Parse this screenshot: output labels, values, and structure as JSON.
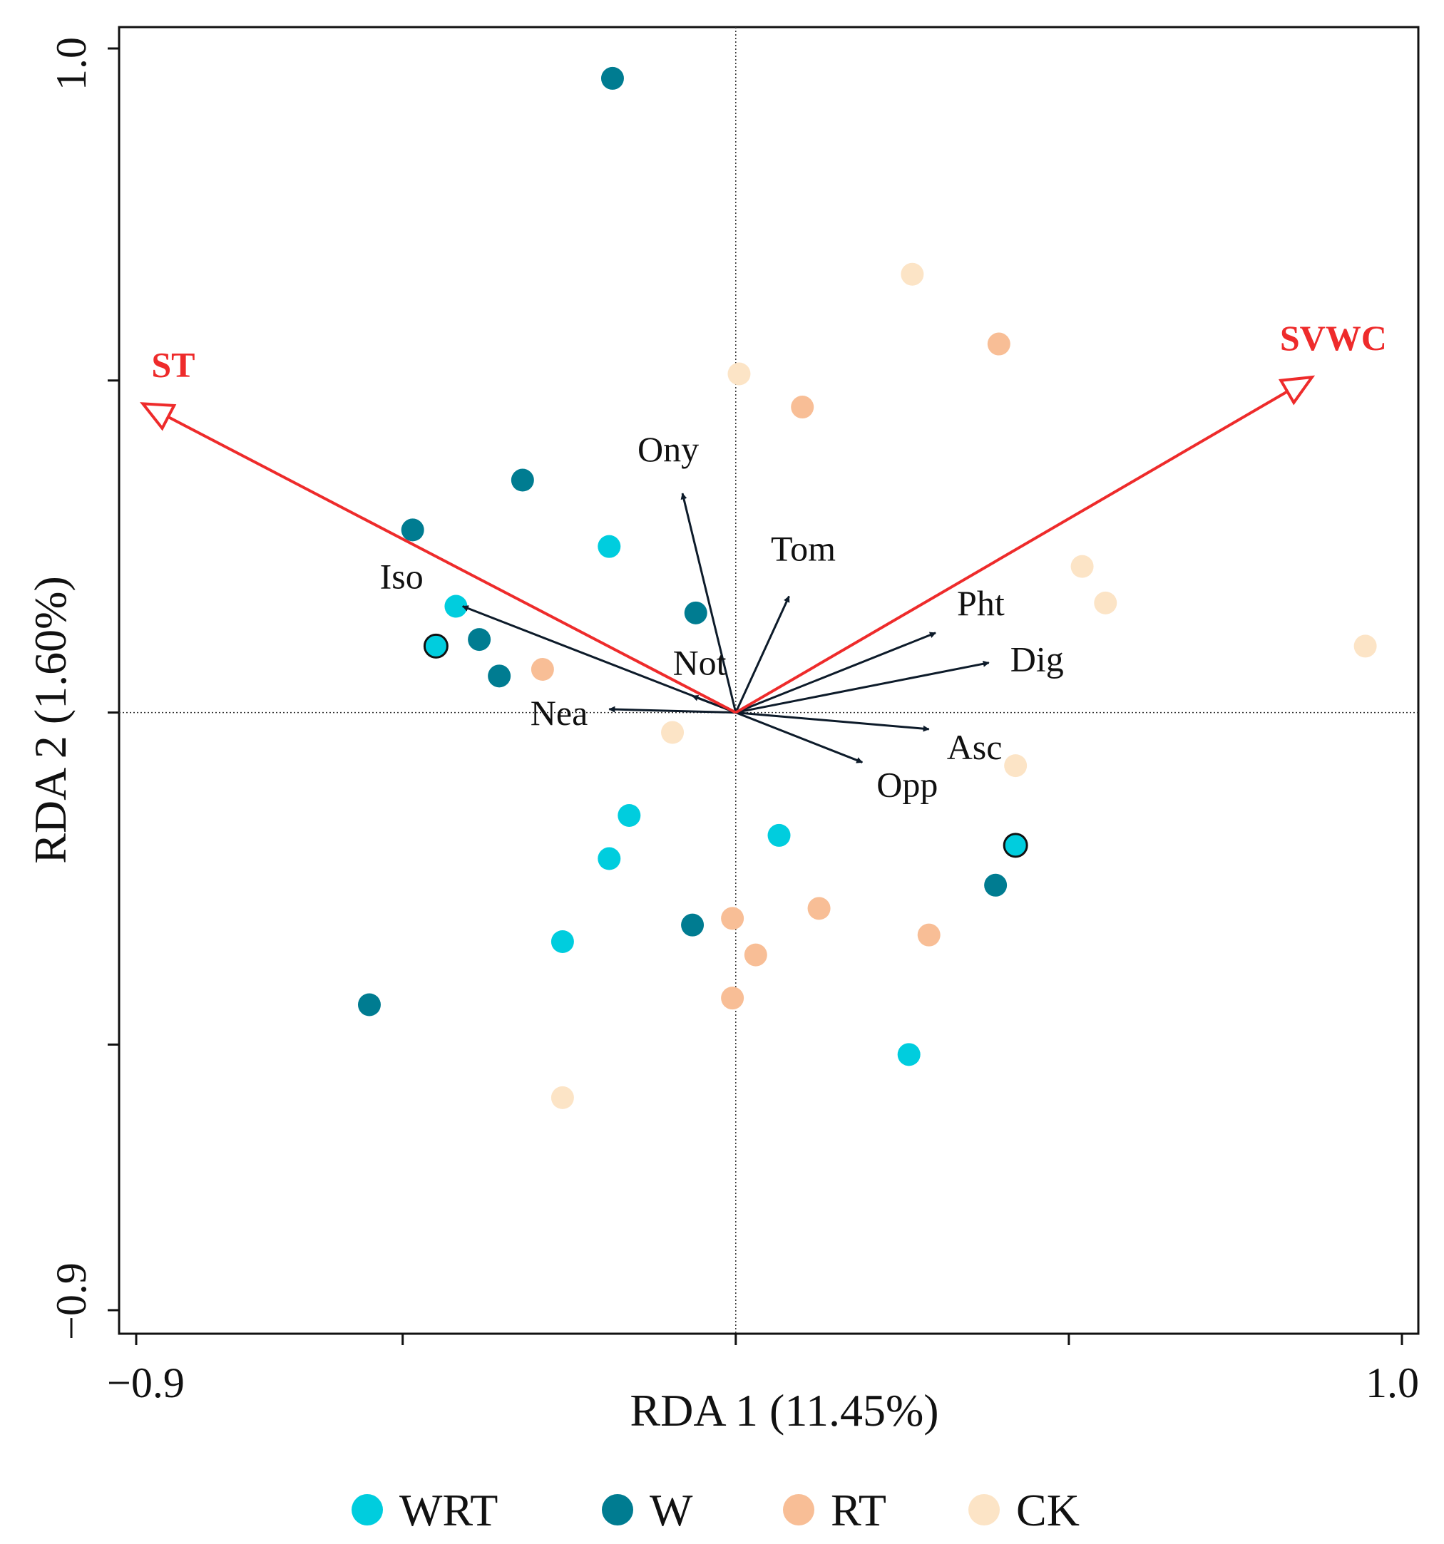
{
  "chart_data": {
    "type": "scatter",
    "subtype": "rda-biplot",
    "xlabel": "RDA 1 (11.45%)",
    "ylabel": "RDA 2 (1.60%)",
    "xlim": [
      -0.9,
      1.0
    ],
    "ylim": [
      -0.9,
      1.0
    ],
    "x_ticks": [
      -0.9,
      -0.5,
      0.0,
      0.5,
      1.0
    ],
    "x_tick_labels": [
      "−0.9",
      "",
      "",
      "",
      "1.0"
    ],
    "y_ticks": [
      -0.9,
      -0.5,
      0.0,
      0.5,
      1.0
    ],
    "y_tick_labels": [
      "−0.9",
      "",
      "",
      "",
      "1.0"
    ],
    "reference_lines": {
      "x": 0,
      "y": 0,
      "style": "dotted"
    },
    "legend_position": "bottom",
    "series": [
      {
        "name": "WRT",
        "color": "#00CDDE",
        "points": [
          {
            "x": -0.19,
            "y": 0.25
          },
          {
            "x": -0.42,
            "y": 0.16
          },
          {
            "x": -0.45,
            "y": 0.1,
            "outlined": true
          },
          {
            "x": -0.16,
            "y": -0.155
          },
          {
            "x": -0.19,
            "y": -0.22
          },
          {
            "x": -0.26,
            "y": -0.345
          },
          {
            "x": 0.065,
            "y": -0.185
          },
          {
            "x": 0.42,
            "y": -0.2,
            "outlined": true
          },
          {
            "x": 0.26,
            "y": -0.515
          }
        ]
      },
      {
        "name": "W",
        "color": "#007C91",
        "points": [
          {
            "x": -0.185,
            "y": 0.955
          },
          {
            "x": -0.32,
            "y": 0.35
          },
          {
            "x": -0.485,
            "y": 0.275
          },
          {
            "x": -0.06,
            "y": 0.15
          },
          {
            "x": -0.385,
            "y": 0.11
          },
          {
            "x": -0.355,
            "y": 0.055
          },
          {
            "x": -0.065,
            "y": -0.32
          },
          {
            "x": 0.39,
            "y": -0.26
          },
          {
            "x": -0.55,
            "y": -0.44
          }
        ]
      },
      {
        "name": "RT",
        "color": "#F8BE96",
        "points": [
          {
            "x": 0.395,
            "y": 0.555
          },
          {
            "x": 0.1,
            "y": 0.46
          },
          {
            "x": -0.29,
            "y": 0.065
          },
          {
            "x": 0.125,
            "y": -0.295
          },
          {
            "x": -0.005,
            "y": -0.31
          },
          {
            "x": 0.29,
            "y": -0.335
          },
          {
            "x": 0.03,
            "y": -0.365
          },
          {
            "x": -0.005,
            "y": -0.43
          }
        ]
      },
      {
        "name": "CK",
        "color": "#FCE4C6",
        "points": [
          {
            "x": 0.265,
            "y": 0.66
          },
          {
            "x": 0.005,
            "y": 0.51
          },
          {
            "x": 0.52,
            "y": 0.22
          },
          {
            "x": 0.555,
            "y": 0.165
          },
          {
            "x": 0.945,
            "y": 0.1
          },
          {
            "x": -0.095,
            "y": -0.03
          },
          {
            "x": 0.42,
            "y": -0.08
          },
          {
            "x": -0.26,
            "y": -0.58
          }
        ]
      }
    ],
    "species_vectors": [
      {
        "label": "Ony",
        "x": -0.08,
        "y": 0.33
      },
      {
        "label": "Tom",
        "x": 0.08,
        "y": 0.175
      },
      {
        "label": "Pht",
        "x": 0.3,
        "y": 0.12
      },
      {
        "label": "Dig",
        "x": 0.38,
        "y": 0.075
      },
      {
        "label": "Not",
        "x": -0.065,
        "y": 0.025
      },
      {
        "label": "Nea",
        "x": -0.19,
        "y": 0.005
      },
      {
        "label": "Iso",
        "x": -0.41,
        "y": 0.16
      },
      {
        "label": "Asc",
        "x": 0.29,
        "y": -0.025
      },
      {
        "label": "Opp",
        "x": 0.19,
        "y": -0.075
      }
    ],
    "env_vectors": [
      {
        "label": "ST",
        "x": -0.89,
        "y": 0.465
      },
      {
        "label": "SVWC",
        "x": 0.865,
        "y": 0.505
      }
    ],
    "legend": [
      "WRT",
      "W",
      "RT",
      "CK"
    ]
  }
}
